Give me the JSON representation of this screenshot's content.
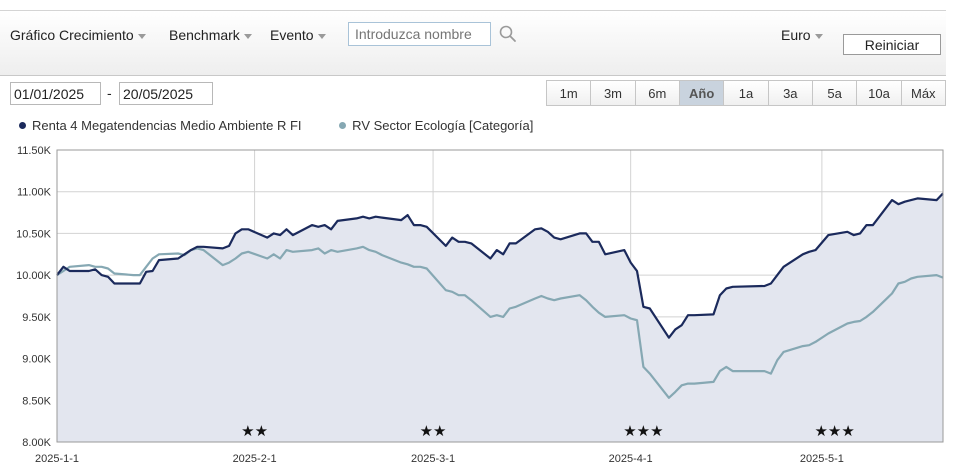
{
  "toolbar": {
    "menu_growth": "Gráfico Crecimiento",
    "menu_benchmark": "Benchmark",
    "menu_event": "Evento",
    "search_placeholder": "Introduzca nombre",
    "currency": "Euro",
    "reset_label": "Reiniciar"
  },
  "date_range": {
    "start": "01/01/2025",
    "separator": "-",
    "end": "20/05/2025"
  },
  "periods": [
    {
      "label": "1m",
      "active": false
    },
    {
      "label": "3m",
      "active": false
    },
    {
      "label": "6m",
      "active": false
    },
    {
      "label": "Año",
      "active": true
    },
    {
      "label": "1a",
      "active": false
    },
    {
      "label": "3a",
      "active": false
    },
    {
      "label": "5a",
      "active": false
    },
    {
      "label": "10a",
      "active": false
    },
    {
      "label": "Máx",
      "active": false
    }
  ],
  "colors": {
    "fund": "#1b2a5c",
    "category": "#86a8b3",
    "area_fill": "#e3e6ef",
    "grid": "#d2d2d2",
    "axis": "#9a9a9a"
  },
  "chart_data": {
    "type": "line",
    "legend_position": "top-left",
    "grid": true,
    "xlim": [
      "2025-01-01",
      "2025-05-20"
    ],
    "ylim": [
      8000,
      11500
    ],
    "y_ticks": [
      8000,
      8500,
      9000,
      9500,
      10000,
      10500,
      11000,
      11500
    ],
    "y_tick_labels": [
      "8.00K",
      "8.50K",
      "9.00K",
      "9.50K",
      "10.00K",
      "10.50K",
      "11.00K",
      "11.50K"
    ],
    "x_ticks": [
      "2025-01-01",
      "2025-02-01",
      "2025-03-01",
      "2025-04-01",
      "2025-05-01"
    ],
    "x_tick_labels": [
      "2025-1-1",
      "2025-2-1",
      "2025-3-1",
      "2025-4-1",
      "2025-5-1"
    ],
    "ratings": [
      {
        "date": "2025-02-01",
        "stars": "★★"
      },
      {
        "date": "2025-03-01",
        "stars": "★★"
      },
      {
        "date": "2025-04-03",
        "stars": "★★★"
      },
      {
        "date": "2025-05-03",
        "stars": "★★★"
      }
    ],
    "series": [
      {
        "name": "Renta 4 Megatendencias Medio Ambiente R FI",
        "color": "#1b2a5c",
        "points": [
          [
            "2025-01-01",
            10000
          ],
          [
            "2025-01-02",
            10100
          ],
          [
            "2025-01-03",
            10050
          ],
          [
            "2025-01-06",
            10050
          ],
          [
            "2025-01-07",
            10070
          ],
          [
            "2025-01-08",
            10000
          ],
          [
            "2025-01-09",
            9980
          ],
          [
            "2025-01-10",
            9900
          ],
          [
            "2025-01-13",
            9900
          ],
          [
            "2025-01-14",
            9900
          ],
          [
            "2025-01-15",
            10040
          ],
          [
            "2025-01-16",
            10050
          ],
          [
            "2025-01-17",
            10180
          ],
          [
            "2025-01-20",
            10200
          ],
          [
            "2025-01-21",
            10250
          ],
          [
            "2025-01-22",
            10300
          ],
          [
            "2025-01-23",
            10340
          ],
          [
            "2025-01-24",
            10340
          ],
          [
            "2025-01-27",
            10320
          ],
          [
            "2025-01-28",
            10350
          ],
          [
            "2025-01-29",
            10500
          ],
          [
            "2025-01-30",
            10550
          ],
          [
            "2025-01-31",
            10550
          ],
          [
            "2025-02-03",
            10450
          ],
          [
            "2025-02-04",
            10500
          ],
          [
            "2025-02-05",
            10480
          ],
          [
            "2025-02-06",
            10550
          ],
          [
            "2025-02-07",
            10480
          ],
          [
            "2025-02-10",
            10600
          ],
          [
            "2025-02-11",
            10580
          ],
          [
            "2025-02-12",
            10600
          ],
          [
            "2025-02-13",
            10550
          ],
          [
            "2025-02-14",
            10650
          ],
          [
            "2025-02-17",
            10680
          ],
          [
            "2025-02-18",
            10700
          ],
          [
            "2025-02-19",
            10680
          ],
          [
            "2025-02-20",
            10700
          ],
          [
            "2025-02-21",
            10690
          ],
          [
            "2025-02-24",
            10660
          ],
          [
            "2025-02-25",
            10720
          ],
          [
            "2025-02-26",
            10600
          ],
          [
            "2025-02-27",
            10600
          ],
          [
            "2025-02-28",
            10580
          ],
          [
            "2025-03-03",
            10350
          ],
          [
            "2025-03-04",
            10450
          ],
          [
            "2025-03-05",
            10400
          ],
          [
            "2025-03-06",
            10400
          ],
          [
            "2025-03-07",
            10380
          ],
          [
            "2025-03-10",
            10200
          ],
          [
            "2025-03-11",
            10300
          ],
          [
            "2025-03-12",
            10250
          ],
          [
            "2025-03-13",
            10380
          ],
          [
            "2025-03-14",
            10380
          ],
          [
            "2025-03-17",
            10550
          ],
          [
            "2025-03-18",
            10560
          ],
          [
            "2025-03-19",
            10520
          ],
          [
            "2025-03-20",
            10450
          ],
          [
            "2025-03-21",
            10430
          ],
          [
            "2025-03-24",
            10500
          ],
          [
            "2025-03-25",
            10500
          ],
          [
            "2025-03-26",
            10400
          ],
          [
            "2025-03-27",
            10400
          ],
          [
            "2025-03-28",
            10250
          ],
          [
            "2025-03-31",
            10300
          ],
          [
            "2025-04-01",
            10150
          ],
          [
            "2025-04-02",
            10050
          ],
          [
            "2025-04-03",
            9620
          ],
          [
            "2025-04-04",
            9600
          ],
          [
            "2025-04-07",
            9250
          ],
          [
            "2025-04-08",
            9350
          ],
          [
            "2025-04-09",
            9400
          ],
          [
            "2025-04-10",
            9520
          ],
          [
            "2025-04-11",
            9520
          ],
          [
            "2025-04-14",
            9530
          ],
          [
            "2025-04-15",
            9760
          ],
          [
            "2025-04-16",
            9840
          ],
          [
            "2025-04-17",
            9860
          ],
          [
            "2025-04-22",
            9870
          ],
          [
            "2025-04-23",
            9900
          ],
          [
            "2025-04-24",
            10000
          ],
          [
            "2025-04-25",
            10100
          ],
          [
            "2025-04-28",
            10250
          ],
          [
            "2025-04-29",
            10280
          ],
          [
            "2025-04-30",
            10300
          ],
          [
            "2025-05-02",
            10480
          ],
          [
            "2025-05-05",
            10520
          ],
          [
            "2025-05-06",
            10480
          ],
          [
            "2025-05-07",
            10500
          ],
          [
            "2025-05-08",
            10600
          ],
          [
            "2025-05-09",
            10600
          ],
          [
            "2025-05-12",
            10900
          ],
          [
            "2025-05-13",
            10850
          ],
          [
            "2025-05-14",
            10880
          ],
          [
            "2025-05-15",
            10900
          ],
          [
            "2025-05-16",
            10920
          ],
          [
            "2025-05-19",
            10900
          ],
          [
            "2025-05-20",
            10980
          ]
        ]
      },
      {
        "name": "RV Sector Ecología [Categoría]",
        "color": "#86a8b3",
        "points": [
          [
            "2025-01-01",
            10000
          ],
          [
            "2025-01-02",
            10050
          ],
          [
            "2025-01-03",
            10100
          ],
          [
            "2025-01-06",
            10120
          ],
          [
            "2025-01-07",
            10100
          ],
          [
            "2025-01-08",
            10100
          ],
          [
            "2025-01-09",
            10080
          ],
          [
            "2025-01-10",
            10020
          ],
          [
            "2025-01-13",
            10000
          ],
          [
            "2025-01-14",
            10000
          ],
          [
            "2025-01-15",
            10100
          ],
          [
            "2025-01-16",
            10200
          ],
          [
            "2025-01-17",
            10250
          ],
          [
            "2025-01-20",
            10260
          ],
          [
            "2025-01-21",
            10240
          ],
          [
            "2025-01-22",
            10300
          ],
          [
            "2025-01-23",
            10320
          ],
          [
            "2025-01-24",
            10300
          ],
          [
            "2025-01-27",
            10120
          ],
          [
            "2025-01-28",
            10150
          ],
          [
            "2025-01-29",
            10200
          ],
          [
            "2025-01-30",
            10260
          ],
          [
            "2025-01-31",
            10280
          ],
          [
            "2025-02-03",
            10200
          ],
          [
            "2025-02-04",
            10250
          ],
          [
            "2025-02-05",
            10200
          ],
          [
            "2025-02-06",
            10300
          ],
          [
            "2025-02-07",
            10280
          ],
          [
            "2025-02-10",
            10300
          ],
          [
            "2025-02-11",
            10320
          ],
          [
            "2025-02-12",
            10260
          ],
          [
            "2025-02-13",
            10300
          ],
          [
            "2025-02-14",
            10280
          ],
          [
            "2025-02-17",
            10320
          ],
          [
            "2025-02-18",
            10340
          ],
          [
            "2025-02-19",
            10300
          ],
          [
            "2025-02-20",
            10280
          ],
          [
            "2025-02-21",
            10240
          ],
          [
            "2025-02-24",
            10150
          ],
          [
            "2025-02-25",
            10130
          ],
          [
            "2025-02-26",
            10100
          ],
          [
            "2025-02-27",
            10100
          ],
          [
            "2025-02-28",
            10080
          ],
          [
            "2025-03-03",
            9820
          ],
          [
            "2025-03-04",
            9800
          ],
          [
            "2025-03-05",
            9760
          ],
          [
            "2025-03-06",
            9760
          ],
          [
            "2025-03-07",
            9700
          ],
          [
            "2025-03-10",
            9500
          ],
          [
            "2025-03-11",
            9520
          ],
          [
            "2025-03-12",
            9500
          ],
          [
            "2025-03-13",
            9600
          ],
          [
            "2025-03-14",
            9620
          ],
          [
            "2025-03-17",
            9720
          ],
          [
            "2025-03-18",
            9750
          ],
          [
            "2025-03-19",
            9720
          ],
          [
            "2025-03-20",
            9700
          ],
          [
            "2025-03-21",
            9720
          ],
          [
            "2025-03-24",
            9760
          ],
          [
            "2025-03-25",
            9700
          ],
          [
            "2025-03-26",
            9620
          ],
          [
            "2025-03-27",
            9550
          ],
          [
            "2025-03-28",
            9500
          ],
          [
            "2025-03-31",
            9520
          ],
          [
            "2025-04-01",
            9480
          ],
          [
            "2025-04-02",
            9460
          ],
          [
            "2025-04-03",
            8900
          ],
          [
            "2025-04-04",
            8820
          ],
          [
            "2025-04-07",
            8530
          ],
          [
            "2025-04-08",
            8600
          ],
          [
            "2025-04-09",
            8680
          ],
          [
            "2025-04-10",
            8700
          ],
          [
            "2025-04-11",
            8700
          ],
          [
            "2025-04-14",
            8720
          ],
          [
            "2025-04-15",
            8850
          ],
          [
            "2025-04-16",
            8900
          ],
          [
            "2025-04-17",
            8850
          ],
          [
            "2025-04-22",
            8850
          ],
          [
            "2025-04-23",
            8820
          ],
          [
            "2025-04-24",
            8980
          ],
          [
            "2025-04-25",
            9080
          ],
          [
            "2025-04-28",
            9150
          ],
          [
            "2025-04-29",
            9160
          ],
          [
            "2025-04-30",
            9200
          ],
          [
            "2025-05-02",
            9300
          ],
          [
            "2025-05-05",
            9420
          ],
          [
            "2025-05-06",
            9440
          ],
          [
            "2025-05-07",
            9450
          ],
          [
            "2025-05-08",
            9500
          ],
          [
            "2025-05-09",
            9560
          ],
          [
            "2025-05-12",
            9780
          ],
          [
            "2025-05-13",
            9900
          ],
          [
            "2025-05-14",
            9920
          ],
          [
            "2025-05-15",
            9960
          ],
          [
            "2025-05-16",
            9980
          ],
          [
            "2025-05-19",
            10000
          ],
          [
            "2025-05-20",
            9970
          ]
        ]
      }
    ]
  }
}
